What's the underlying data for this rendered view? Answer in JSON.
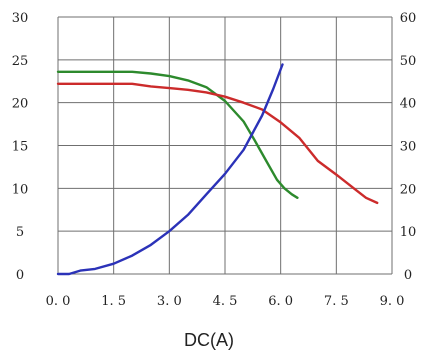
{
  "chart_data": {
    "type": "line",
    "title": "",
    "xlabel": "DC(A)",
    "ylabel": "",
    "y2label": "",
    "xlim": [
      0,
      9.0
    ],
    "ylim": [
      0,
      30
    ],
    "y2lim": [
      0,
      60
    ],
    "grid": true,
    "legend": "none",
    "x_ticks": [
      "0. 0",
      "1. 5",
      "3. 0",
      "4. 5",
      "6. 0",
      "7. 5",
      "9. 0"
    ],
    "x_tick_values": [
      0,
      1.5,
      3.0,
      4.5,
      6.0,
      7.5,
      9.0
    ],
    "y_ticks": [
      "0",
      "5",
      "10",
      "15",
      "20",
      "25",
      "30"
    ],
    "y_tick_values": [
      0,
      5,
      10,
      15,
      20,
      25,
      30
    ],
    "y2_ticks": [
      "0",
      "10",
      "20",
      "30",
      "40",
      "50",
      "60"
    ],
    "y2_tick_values": [
      0,
      10,
      20,
      30,
      40,
      50,
      60
    ],
    "series": [
      {
        "color": "#2d8a2d",
        "axis": "left",
        "x": [
          0.0,
          0.5,
          1.0,
          1.5,
          2.0,
          2.5,
          3.0,
          3.5,
          4.0,
          4.5,
          5.0,
          5.3,
          5.6,
          5.9,
          6.1,
          6.3,
          6.45
        ],
        "y": [
          23.6,
          23.6,
          23.6,
          23.6,
          23.6,
          23.4,
          23.1,
          22.6,
          21.8,
          20.2,
          17.8,
          15.6,
          13.3,
          11.0,
          10.0,
          9.3,
          8.9
        ]
      },
      {
        "color": "#cc2b2b",
        "axis": "left",
        "x": [
          0.0,
          0.5,
          1.0,
          1.5,
          2.0,
          2.5,
          3.0,
          3.5,
          4.0,
          4.5,
          5.0,
          5.5,
          6.0,
          6.5,
          7.0,
          7.5,
          8.0,
          8.3,
          8.6
        ],
        "y": [
          22.2,
          22.2,
          22.2,
          22.2,
          22.2,
          21.9,
          21.7,
          21.5,
          21.2,
          20.7,
          20.0,
          19.2,
          17.7,
          15.9,
          13.2,
          11.6,
          9.9,
          8.9,
          8.3
        ]
      },
      {
        "color": "#2b32b8",
        "axis": "right",
        "x": [
          0.0,
          0.3,
          0.6,
          1.0,
          1.5,
          2.0,
          2.5,
          3.0,
          3.5,
          4.0,
          4.5,
          5.0,
          5.5,
          5.8,
          6.05
        ],
        "y": [
          0.0,
          0.0,
          0.8,
          1.2,
          2.4,
          4.3,
          6.8,
          10.0,
          13.8,
          18.6,
          23.4,
          29.0,
          37.0,
          43.2,
          48.9
        ]
      }
    ]
  }
}
